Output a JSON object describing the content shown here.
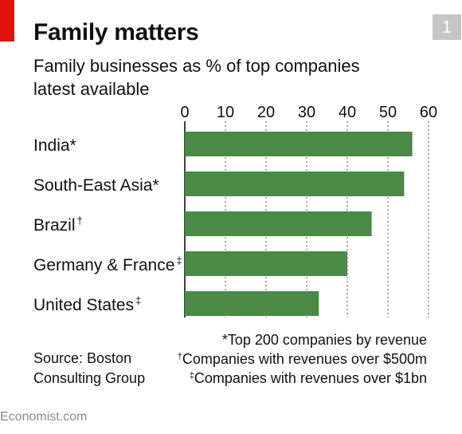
{
  "header": {
    "title": "Family matters",
    "chart_number": "1",
    "subtitle_line1": "Family businesses as % of top companies",
    "subtitle_line2": "latest available"
  },
  "colors": {
    "bar": "#4a8a46",
    "accent": "#e3120b",
    "badge": "#c5c5c5"
  },
  "chart_data": {
    "type": "bar",
    "orientation": "horizontal",
    "title": "Family matters",
    "subtitle": "Family businesses as % of top companies latest available",
    "categories": [
      {
        "name": "India",
        "mark": "*"
      },
      {
        "name": "South-East Asia",
        "mark": "*"
      },
      {
        "name": "Brazil",
        "mark": "†"
      },
      {
        "name": "Germany & France",
        "mark": "‡"
      },
      {
        "name": "United States",
        "mark": "‡"
      }
    ],
    "values": [
      56,
      54,
      46,
      40,
      33
    ],
    "xlim": [
      0,
      60
    ],
    "xticks": [
      0,
      10,
      20,
      30,
      40,
      50,
      60
    ],
    "grid": true,
    "xaxis_position": "top"
  },
  "footnotes": [
    {
      "mark": "*",
      "text": "Top 200 companies by revenue"
    },
    {
      "mark": "†",
      "text": "Companies with revenues over $500m"
    },
    {
      "mark": "‡",
      "text": "Companies with revenues over $1bn"
    }
  ],
  "source": {
    "line1": "Source: Boston",
    "line2": "Consulting Group"
  },
  "brand": "Economist.com"
}
